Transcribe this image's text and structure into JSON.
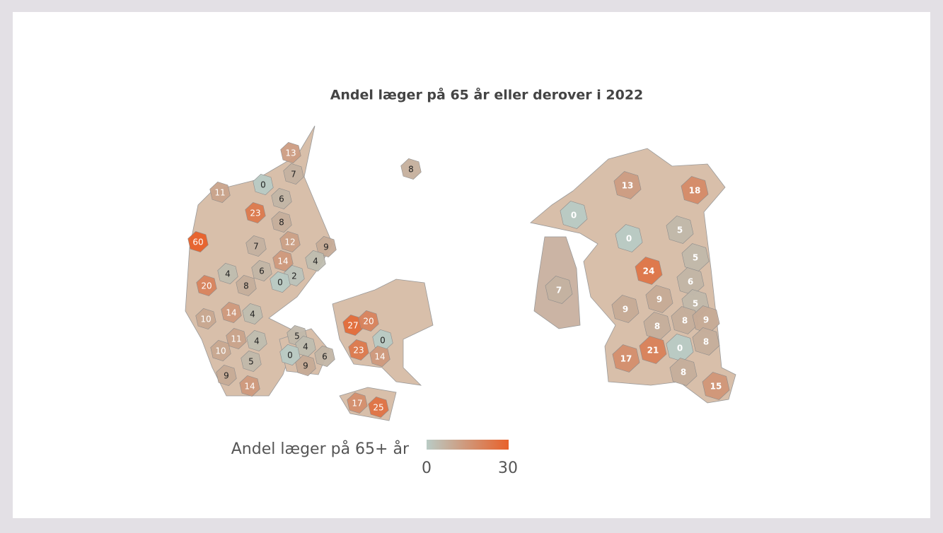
{
  "title": "Andel læger på 65 år eller derover i 2022",
  "legend": {
    "title": "Andel læger på 65+ år",
    "min": 0,
    "max": 30,
    "color_low": "#b9cbc5",
    "color_high": "#e8612a"
  },
  "maps": [
    {
      "regions": [
        {
          "value": 13
        },
        {
          "value": 7
        },
        {
          "value": 0
        },
        {
          "value": 11
        },
        {
          "value": 6
        },
        {
          "value": 23
        },
        {
          "value": 8
        },
        {
          "value": 60
        },
        {
          "value": 7
        },
        {
          "value": 12
        },
        {
          "value": 9
        },
        {
          "value": 14
        },
        {
          "value": 4
        },
        {
          "value": 4
        },
        {
          "value": 6
        },
        {
          "value": 2
        },
        {
          "value": 0
        },
        {
          "value": 8
        },
        {
          "value": 20
        },
        {
          "value": 14
        },
        {
          "value": 4
        },
        {
          "value": 10
        },
        {
          "value": 27
        },
        {
          "value": 20
        },
        {
          "value": 5
        },
        {
          "value": 11
        },
        {
          "value": 4
        },
        {
          "value": 0
        },
        {
          "value": 4
        },
        {
          "value": 10
        },
        {
          "value": 0
        },
        {
          "value": 23
        },
        {
          "value": 6
        },
        {
          "value": 5
        },
        {
          "value": 14
        },
        {
          "value": 9
        },
        {
          "value": 9
        },
        {
          "value": 14
        },
        {
          "value": 17
        },
        {
          "value": 25
        },
        {
          "value": 8
        }
      ]
    },
    {
      "regions": [
        {
          "value": 13
        },
        {
          "value": 18
        },
        {
          "value": 0
        },
        {
          "value": 5
        },
        {
          "value": 0
        },
        {
          "value": 5
        },
        {
          "value": 24
        },
        {
          "value": 6
        },
        {
          "value": 7
        },
        {
          "value": 9
        },
        {
          "value": 5
        },
        {
          "value": 9
        },
        {
          "value": 8
        },
        {
          "value": 9
        },
        {
          "value": 8
        },
        {
          "value": 8
        },
        {
          "value": 21
        },
        {
          "value": 0
        },
        {
          "value": 17
        },
        {
          "value": 8
        },
        {
          "value": 15
        }
      ]
    }
  ]
}
